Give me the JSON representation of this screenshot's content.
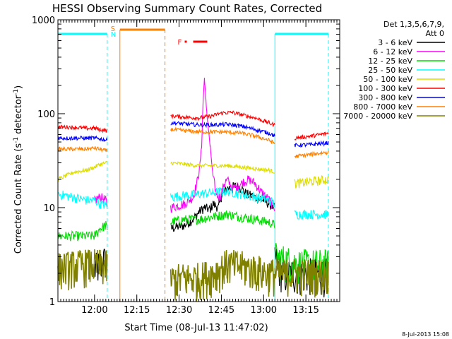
{
  "chart_data": {
    "type": "line",
    "title": "HESSI Observing Summary Count Rates, Corrected",
    "xlabel": "Start Time (08-Jul-13 11:47:02)",
    "ylabel_main": "Corrected Count Rate (s",
    "ylabel_sup1": "-1",
    "ylabel_mid": " detector",
    "ylabel_sup2": "-1",
    "ylabel_end": ")",
    "yscale": "log",
    "ylim": [
      1,
      1000
    ],
    "xlim_minutes": [
      0,
      100
    ],
    "yticks": [
      "1",
      "10",
      "100",
      "1000"
    ],
    "xticks": [
      {
        "label": "12:00",
        "minute": 13
      },
      {
        "label": "12:15",
        "minute": 28
      },
      {
        "label": "12:30",
        "minute": 43
      },
      {
        "label": "12:45",
        "minute": 58
      },
      {
        "label": "13:00",
        "minute": 73
      },
      {
        "label": "13:15",
        "minute": 88
      }
    ],
    "legend": {
      "header1": "Det 1,3,5,6,7,9,",
      "header2": "Att 0",
      "placement": "right",
      "entries": [
        {
          "label": "3 - 6 keV",
          "color": "#000000"
        },
        {
          "label": "6 - 12 keV",
          "color": "#ff00ff"
        },
        {
          "label": "12 - 25 keV",
          "color": "#00dd00"
        },
        {
          "label": "25 - 50 keV",
          "color": "#00ffff"
        },
        {
          "label": "50 - 100 keV",
          "color": "#dddd00"
        },
        {
          "label": "100 - 300 keV",
          "color": "#ff0000"
        },
        {
          "label": "300 - 800 keV",
          "color": "#0000ff"
        },
        {
          "label": "800 - 7000 keV",
          "color": "#ff8000"
        },
        {
          "label": "7000 - 20000 keV",
          "color": "#808000"
        }
      ]
    },
    "events": {
      "saa_label": "S",
      "night_label": "N",
      "flare_label": "F",
      "saa_color": "#ff8000",
      "night_color": "#00ffff",
      "flare_color": "#ff0000",
      "night_intervals_minutes": [
        [
          0,
          17.5
        ],
        [
          77,
          96
        ]
      ],
      "saa_interval_minutes": [
        22,
        38
      ],
      "flare_interval_minutes": [
        48,
        53
      ]
    },
    "series": [
      {
        "name": "3 - 6 keV",
        "color": "#000000",
        "segments": [
          [
            [
              13,
              2.2
            ],
            [
              15,
              2.5
            ],
            [
              17,
              2.8
            ],
            [
              17.5,
              2.5
            ]
          ],
          [
            [
              40,
              6
            ],
            [
              45,
              6.5
            ],
            [
              48,
              7.5
            ],
            [
              50,
              9
            ],
            [
              52,
              10
            ],
            [
              54,
              9.5
            ],
            [
              55,
              11
            ],
            [
              57,
              10
            ],
            [
              58,
              13
            ],
            [
              60,
              16
            ],
            [
              63,
              17
            ],
            [
              65,
              16
            ],
            [
              67,
              14
            ],
            [
              70,
              13
            ],
            [
              73,
              12
            ],
            [
              77,
              10
            ]
          ],
          [
            [
              77,
              3
            ],
            [
              78,
              2.5
            ],
            [
              80,
              2
            ],
            [
              96,
              2
            ]
          ]
        ]
      },
      {
        "name": "6 - 12 keV",
        "color": "#ff00ff",
        "segments": [
          [
            [
              13,
              12
            ],
            [
              15,
              13
            ],
            [
              17,
              12
            ],
            [
              17.5,
              11
            ]
          ],
          [
            [
              40,
              10
            ],
            [
              45,
              11
            ],
            [
              48,
              13
            ],
            [
              50,
              22
            ],
            [
              51,
              45
            ],
            [
              51.5,
              130
            ],
            [
              52,
              240
            ],
            [
              52.5,
              140
            ],
            [
              53,
              90
            ],
            [
              54,
              45
            ],
            [
              55,
              22
            ],
            [
              56,
              15
            ],
            [
              57,
              13
            ],
            [
              58,
              14
            ],
            [
              59,
              18
            ],
            [
              60,
              20
            ],
            [
              62,
              16
            ],
            [
              64,
              17
            ],
            [
              66,
              19
            ],
            [
              68,
              20
            ],
            [
              70,
              18
            ],
            [
              72,
              15
            ],
            [
              75,
              12
            ],
            [
              77,
              10
            ]
          ]
        ]
      },
      {
        "name": "12 - 25 keV",
        "color": "#00dd00",
        "segments": [
          [
            [
              0,
              5
            ],
            [
              13,
              5
            ],
            [
              15,
              6
            ],
            [
              17,
              6.5
            ],
            [
              17.5,
              6
            ]
          ],
          [
            [
              40,
              7
            ],
            [
              45,
              7.5
            ],
            [
              50,
              7.5
            ],
            [
              55,
              8
            ],
            [
              60,
              8.5
            ],
            [
              65,
              8
            ],
            [
              70,
              7.5
            ],
            [
              75,
              7
            ],
            [
              77,
              6.5
            ]
          ],
          [
            [
              77,
              3
            ],
            [
              85,
              2.5
            ],
            [
              96,
              2.5
            ]
          ]
        ]
      },
      {
        "name": "25 - 50 keV",
        "color": "#00ffff",
        "segments": [
          [
            [
              0,
              14
            ],
            [
              5,
              13
            ],
            [
              10,
              12
            ],
            [
              13,
              12
            ],
            [
              15,
              11
            ],
            [
              17.5,
              10.5
            ]
          ],
          [
            [
              40,
              13
            ],
            [
              45,
              13.5
            ],
            [
              50,
              14
            ],
            [
              55,
              14.5
            ],
            [
              60,
              15
            ],
            [
              65,
              14
            ],
            [
              70,
              13
            ],
            [
              75,
              12
            ],
            [
              77,
              11
            ]
          ],
          [
            [
              84,
              8.5
            ],
            [
              90,
              8.5
            ],
            [
              96,
              8.5
            ]
          ]
        ]
      },
      {
        "name": "50 - 100 keV",
        "color": "#dddd00",
        "segments": [
          [
            [
              0,
              20
            ],
            [
              3,
              22
            ],
            [
              6,
              24
            ],
            [
              10,
              25
            ],
            [
              13,
              27
            ],
            [
              15,
              29
            ],
            [
              17.5,
              30
            ]
          ],
          [
            [
              40,
              30
            ],
            [
              45,
              29
            ],
            [
              50,
              28
            ],
            [
              55,
              28
            ],
            [
              60,
              28
            ],
            [
              65,
              27
            ],
            [
              70,
              26
            ],
            [
              75,
              25
            ],
            [
              77,
              24
            ]
          ],
          [
            [
              84,
              18
            ],
            [
              90,
              19
            ],
            [
              96,
              20
            ]
          ]
        ]
      },
      {
        "name": "100 - 300 keV",
        "color": "#ff0000",
        "segments": [
          [
            [
              0,
              72
            ],
            [
              5,
              72
            ],
            [
              10,
              70
            ],
            [
              13,
              70
            ],
            [
              15,
              68
            ],
            [
              17.5,
              66
            ]
          ],
          [
            [
              40,
              95
            ],
            [
              45,
              92
            ],
            [
              50,
              90
            ],
            [
              55,
              95
            ],
            [
              58,
              102
            ],
            [
              62,
              103
            ],
            [
              65,
              98
            ],
            [
              70,
              90
            ],
            [
              75,
              80
            ],
            [
              77,
              75
            ]
          ],
          [
            [
              84,
              55
            ],
            [
              90,
              58
            ],
            [
              96,
              62
            ]
          ]
        ]
      },
      {
        "name": "300 - 800 keV",
        "color": "#0000ff",
        "segments": [
          [
            [
              0,
              55
            ],
            [
              5,
              55
            ],
            [
              10,
              55
            ],
            [
              13,
              55
            ],
            [
              15,
              54
            ],
            [
              17.5,
              52
            ]
          ],
          [
            [
              40,
              80
            ],
            [
              45,
              78
            ],
            [
              50,
              76
            ],
            [
              55,
              76
            ],
            [
              60,
              77
            ],
            [
              65,
              74
            ],
            [
              70,
              68
            ],
            [
              75,
              62
            ],
            [
              77,
              58
            ]
          ],
          [
            [
              84,
              46
            ],
            [
              90,
              47
            ],
            [
              96,
              49
            ]
          ]
        ]
      },
      {
        "name": "800 - 7000 keV",
        "color": "#ff8000",
        "segments": [
          [
            [
              0,
              42
            ],
            [
              5,
              42
            ],
            [
              10,
              42
            ],
            [
              13,
              43
            ],
            [
              15,
              42
            ],
            [
              17.5,
              40
            ]
          ],
          [
            [
              40,
              68
            ],
            [
              45,
              66
            ],
            [
              50,
              64
            ],
            [
              55,
              64
            ],
            [
              60,
              64
            ],
            [
              65,
              62
            ],
            [
              70,
              58
            ],
            [
              75,
              52
            ],
            [
              77,
              48
            ]
          ],
          [
            [
              84,
              35
            ],
            [
              90,
              37
            ],
            [
              96,
              39
            ]
          ]
        ]
      },
      {
        "name": "7000 - 20000 keV",
        "color": "#808000",
        "segments": [
          [
            [
              0,
              2.3
            ],
            [
              5,
              2.4
            ],
            [
              10,
              2.5
            ],
            [
              13,
              2.5
            ],
            [
              15,
              2.5
            ],
            [
              17.5,
              2.4
            ]
          ],
          [
            [
              40,
              1.7
            ],
            [
              45,
              1.8
            ],
            [
              50,
              1.8
            ],
            [
              55,
              2
            ],
            [
              60,
              2.5
            ],
            [
              65,
              2.4
            ],
            [
              70,
              2.2
            ],
            [
              75,
              2
            ],
            [
              77,
              2
            ]
          ],
          [
            [
              77,
              2
            ],
            [
              85,
              2
            ],
            [
              96,
              2
            ]
          ]
        ]
      }
    ]
  },
  "footer": {
    "date": "8-Jul-2013 15:08"
  }
}
